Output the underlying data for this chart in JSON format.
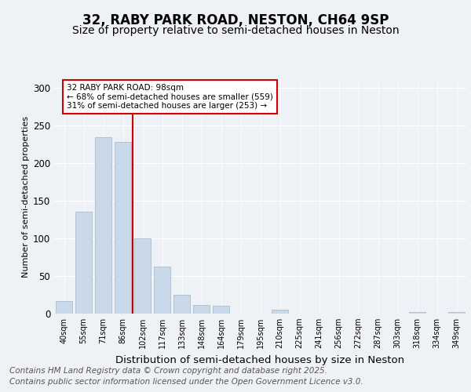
{
  "title": "32, RABY PARK ROAD, NESTON, CH64 9SP",
  "subtitle": "Size of property relative to semi-detached houses in Neston",
  "xlabel": "Distribution of semi-detached houses by size in Neston",
  "ylabel": "Number of semi-detached properties",
  "bar_labels": [
    "40sqm",
    "55sqm",
    "71sqm",
    "86sqm",
    "102sqm",
    "117sqm",
    "133sqm",
    "148sqm",
    "164sqm",
    "179sqm",
    "195sqm",
    "210sqm",
    "225sqm",
    "241sqm",
    "256sqm",
    "272sqm",
    "287sqm",
    "303sqm",
    "318sqm",
    "334sqm",
    "349sqm"
  ],
  "bar_values": [
    17,
    135,
    234,
    228,
    100,
    63,
    25,
    11,
    10,
    0,
    0,
    5,
    0,
    0,
    0,
    0,
    0,
    0,
    2,
    0,
    2
  ],
  "bar_color": "#c9d9ea",
  "bar_edge_color": "#a8bece",
  "property_line_color": "#cc0000",
  "annotation_text": "32 RABY PARK ROAD: 98sqm\n← 68% of semi-detached houses are smaller (559)\n31% of semi-detached houses are larger (253) →",
  "annotation_box_color": "#cc0000",
  "footer_line1": "Contains HM Land Registry data © Crown copyright and database right 2025.",
  "footer_line2": "Contains public sector information licensed under the Open Government Licence v3.0.",
  "ylim": [
    0,
    310
  ],
  "yticks": [
    0,
    50,
    100,
    150,
    200,
    250,
    300
  ],
  "background_color": "#eef2f7",
  "title_fontsize": 12,
  "subtitle_fontsize": 10,
  "footer_fontsize": 7.5
}
